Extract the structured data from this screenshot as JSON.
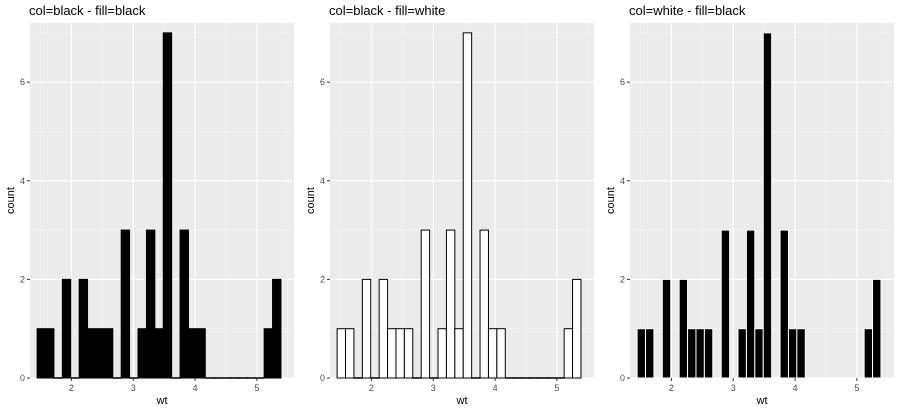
{
  "chart_data": [
    {
      "type": "bar",
      "title": "col=black - fill=black",
      "xlabel": "wt",
      "ylabel": "count",
      "outline_color": "#000000",
      "fill_color": "#000000",
      "xlim": [
        1.33,
        5.6
      ],
      "ylim": [
        0,
        7.2
      ],
      "xticks": [
        2,
        3,
        4,
        5
      ],
      "yticks": [
        0,
        2,
        4,
        6
      ],
      "grid": true,
      "bin_width": 0.136,
      "bins_x": [
        1.513,
        1.649,
        1.785,
        1.921,
        2.057,
        2.193,
        2.329,
        2.465,
        2.601,
        2.737,
        2.873,
        3.009,
        3.145,
        3.281,
        3.417,
        3.553,
        3.689,
        3.825,
        3.961,
        4.097,
        4.233,
        4.369,
        4.505,
        4.641,
        4.777,
        4.913,
        5.049,
        5.185,
        5.321
      ],
      "values": [
        1,
        1,
        0,
        2,
        0,
        2,
        1,
        1,
        1,
        0,
        3,
        0,
        1,
        3,
        1,
        7,
        0,
        3,
        1,
        1,
        0,
        0,
        0,
        0,
        0,
        0,
        0,
        1,
        2
      ]
    },
    {
      "type": "bar",
      "title": "col=black - fill=white",
      "xlabel": "wt",
      "ylabel": "count",
      "outline_color": "#000000",
      "fill_color": "#ffffff",
      "xlim": [
        1.33,
        5.6
      ],
      "ylim": [
        0,
        7.2
      ],
      "xticks": [
        2,
        3,
        4,
        5
      ],
      "yticks": [
        0,
        2,
        4,
        6
      ],
      "grid": true,
      "bin_width": 0.136,
      "bins_x": [
        1.513,
        1.649,
        1.785,
        1.921,
        2.057,
        2.193,
        2.329,
        2.465,
        2.601,
        2.737,
        2.873,
        3.009,
        3.145,
        3.281,
        3.417,
        3.553,
        3.689,
        3.825,
        3.961,
        4.097,
        4.233,
        4.369,
        4.505,
        4.641,
        4.777,
        4.913,
        5.049,
        5.185,
        5.321
      ],
      "values": [
        1,
        1,
        0,
        2,
        0,
        2,
        1,
        1,
        1,
        0,
        3,
        0,
        1,
        3,
        1,
        7,
        0,
        3,
        1,
        1,
        0,
        0,
        0,
        0,
        0,
        0,
        0,
        1,
        2
      ]
    },
    {
      "type": "bar",
      "title": "col=white - fill=black",
      "xlabel": "wt",
      "ylabel": "count",
      "outline_color": "#ffffff",
      "fill_color": "#000000",
      "xlim": [
        1.33,
        5.6
      ],
      "ylim": [
        0,
        7.2
      ],
      "xticks": [
        2,
        3,
        4,
        5
      ],
      "yticks": [
        0,
        2,
        4,
        6
      ],
      "grid": true,
      "bin_width": 0.136,
      "bins_x": [
        1.513,
        1.649,
        1.785,
        1.921,
        2.057,
        2.193,
        2.329,
        2.465,
        2.601,
        2.737,
        2.873,
        3.009,
        3.145,
        3.281,
        3.417,
        3.553,
        3.689,
        3.825,
        3.961,
        4.097,
        4.233,
        4.369,
        4.505,
        4.641,
        4.777,
        4.913,
        5.049,
        5.185,
        5.321
      ],
      "values": [
        1,
        1,
        0,
        2,
        0,
        2,
        1,
        1,
        1,
        0,
        3,
        0,
        1,
        3,
        1,
        7,
        0,
        3,
        1,
        1,
        0,
        0,
        0,
        0,
        0,
        0,
        0,
        1,
        2
      ]
    }
  ]
}
